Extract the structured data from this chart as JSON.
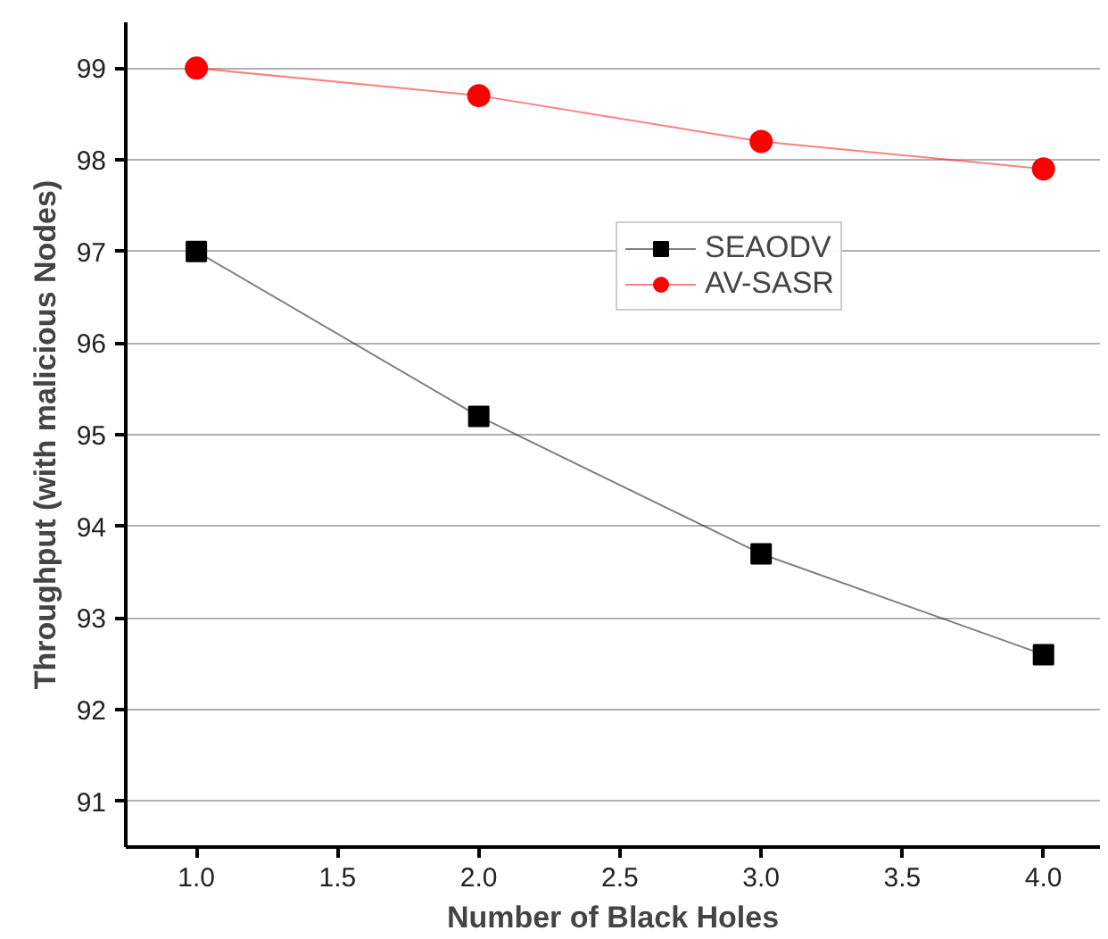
{
  "chart_data": {
    "type": "line",
    "xlabel": "Number of Black Holes",
    "ylabel": "Throughput (with malicious Nodes)",
    "x": [
      1,
      2,
      3,
      4
    ],
    "series": [
      {
        "name": "SEAODV",
        "color": "#000000",
        "values": [
          97.0,
          95.2,
          93.7,
          92.6
        ],
        "marker": "square"
      },
      {
        "name": "AV-SASR",
        "color": "#ff0000",
        "values": [
          99.0,
          98.7,
          98.2,
          97.9
        ],
        "marker": "circle"
      }
    ],
    "xlim": [
      0.75,
      4.2
    ],
    "ylim": [
      90.5,
      99.5
    ],
    "xticks": [
      {
        "value": 1,
        "label": "1.0"
      },
      {
        "value": 1.5,
        "label": "1.5"
      },
      {
        "value": 2,
        "label": "2.0"
      },
      {
        "value": 2.5,
        "label": "2.5"
      },
      {
        "value": 3,
        "label": "3.0"
      },
      {
        "value": 3.5,
        "label": "3.5"
      },
      {
        "value": 4,
        "label": "4.0"
      }
    ],
    "yticks": [
      91,
      92,
      93,
      94,
      95,
      96,
      97,
      98,
      99
    ],
    "grid": "y",
    "legend": "top right",
    "line_style": "solid"
  }
}
